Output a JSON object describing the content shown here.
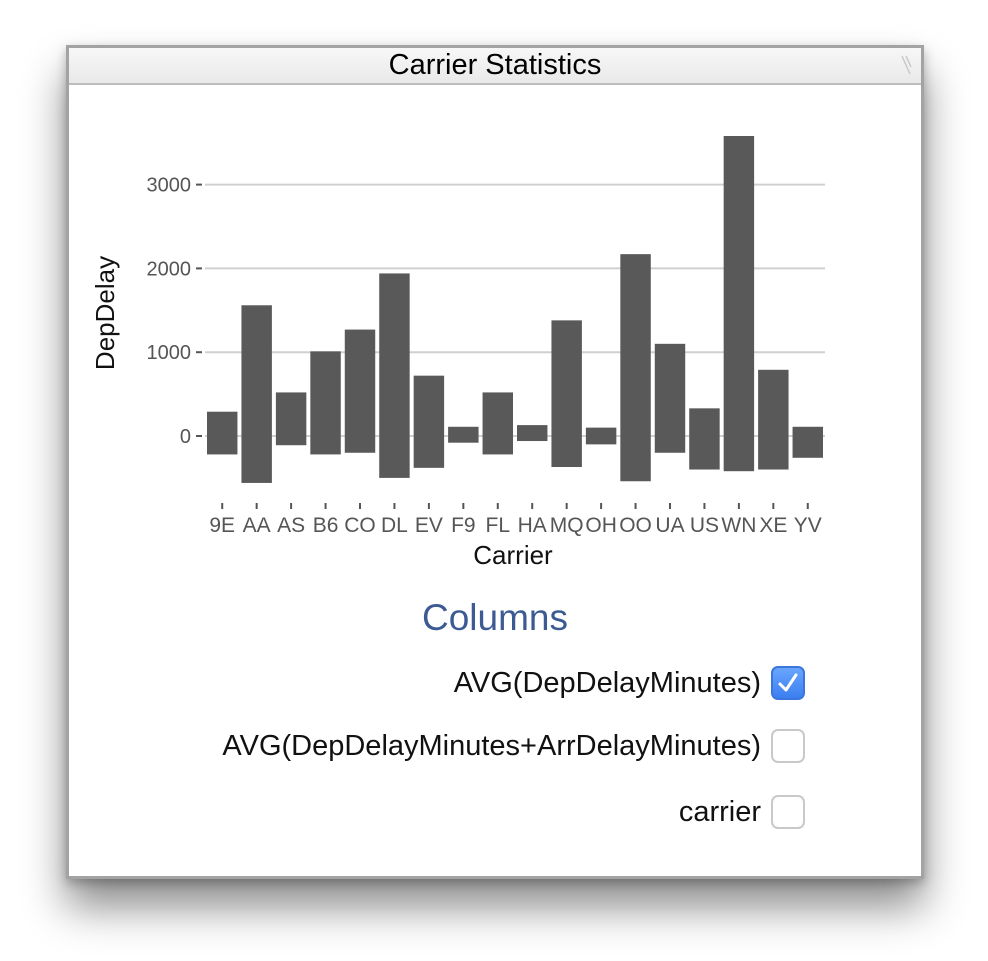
{
  "window": {
    "title": "Carrier Statistics"
  },
  "chart_data": {
    "type": "bar",
    "xlabel": "Carrier",
    "ylabel": "DepDelay",
    "ylim": [
      -600,
      3600
    ],
    "yticks": [
      0,
      1000,
      2000,
      3000
    ],
    "grid": true,
    "categories": [
      "9E",
      "AA",
      "AS",
      "B6",
      "CO",
      "DL",
      "EV",
      "F9",
      "FL",
      "HA",
      "MQ",
      "OH",
      "OO",
      "UA",
      "US",
      "WN",
      "XE",
      "YV"
    ],
    "bars": [
      {
        "low": -220,
        "high": 290
      },
      {
        "low": -560,
        "high": 1560
      },
      {
        "low": -110,
        "high": 520
      },
      {
        "low": -220,
        "high": 1010
      },
      {
        "low": -200,
        "high": 1270
      },
      {
        "low": -500,
        "high": 1940
      },
      {
        "low": -380,
        "high": 720
      },
      {
        "low": -80,
        "high": 110
      },
      {
        "low": -220,
        "high": 520
      },
      {
        "low": -60,
        "high": 130
      },
      {
        "low": -370,
        "high": 1380
      },
      {
        "low": -100,
        "high": 100
      },
      {
        "low": -540,
        "high": 2170
      },
      {
        "low": -200,
        "high": 1100
      },
      {
        "low": -400,
        "high": 330
      },
      {
        "low": -420,
        "high": 3580
      },
      {
        "low": -400,
        "high": 790
      },
      {
        "low": -260,
        "high": 110
      }
    ],
    "colors": {
      "bar": "#595959",
      "grid": "#d0d0d0"
    }
  },
  "columns": {
    "title": "Columns",
    "items": [
      {
        "label": "AVG(DepDelayMinutes)",
        "checked": true
      },
      {
        "label": "AVG(DepDelayMinutes+ArrDelayMinutes)",
        "checked": false
      },
      {
        "label": "carrier",
        "checked": false
      }
    ]
  },
  "colors": {
    "accent": "#3d5b93",
    "checkbox_checked": "#4a8cf7"
  }
}
